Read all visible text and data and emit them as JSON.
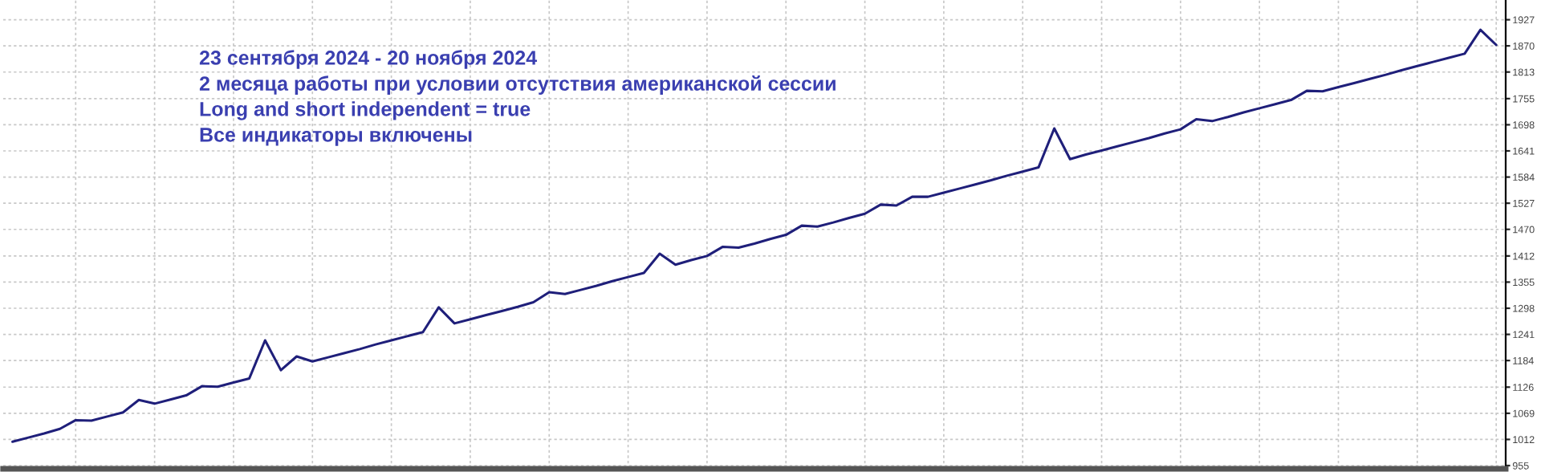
{
  "chart_data": {
    "type": "line",
    "annotations": [
      "23 сентября 2024 - 20 ноября 2024",
      "2 месяца работы при условии отсутствия американской сессии",
      "Long and short independent = true",
      "Все индикаторы включены"
    ],
    "categories": [
      null,
      null,
      null,
      null,
      null,
      null,
      null,
      null,
      null,
      null,
      null,
      null,
      null,
      null,
      null,
      null,
      null,
      null,
      null,
      null,
      null,
      null,
      null,
      null,
      null,
      null,
      null,
      null,
      null,
      null,
      null,
      null,
      null,
      null,
      null,
      null,
      null,
      null,
      null,
      null,
      null,
      null,
      null,
      null,
      null,
      null,
      null,
      null,
      null,
      null,
      null,
      null,
      null,
      null,
      null,
      null,
      null,
      null,
      null,
      null,
      null,
      null,
      null,
      null,
      null,
      null,
      null,
      null,
      null,
      null,
      null,
      null,
      null,
      null,
      null,
      null,
      null,
      null,
      null,
      null,
      null,
      null,
      null,
      null,
      null,
      null,
      null,
      null,
      null,
      null,
      null,
      null,
      null,
      null,
      null
    ],
    "series": [
      {
        "color": "#1f1f7a",
        "values": [
          1007,
          1016,
          1025,
          1035,
          1054,
          1053,
          1062,
          1071,
          1098,
          1090,
          1099,
          1108,
          1128,
          1127,
          1136,
          1145,
          1228,
          1163,
          1193,
          1182,
          1191,
          1200,
          1209,
          1219,
          1228,
          1237,
          1246,
          1300,
          1265,
          1274,
          1283,
          1292,
          1301,
          1311,
          1333,
          1329,
          1338,
          1347,
          1357,
          1366,
          1375,
          1417,
          1393,
          1403,
          1412,
          1432,
          1430,
          1439,
          1449,
          1458,
          1478,
          1476,
          1485,
          1495,
          1504,
          1524,
          1522,
          1541,
          1541,
          1550,
          1559,
          1568,
          1577,
          1587,
          1596,
          1605,
          1690,
          1623,
          1633,
          1642,
          1651,
          1660,
          1669,
          1679,
          1688,
          1710,
          1706,
          1715,
          1725,
          1734,
          1743,
          1752,
          1772,
          1771,
          1780,
          1789,
          1798,
          1807,
          1817,
          1826,
          1835,
          1844,
          1853,
          1905,
          1872
        ]
      }
    ],
    "ylim": [
      948,
      1970
    ],
    "yticks": [
      955,
      1012,
      1069,
      1126,
      1184,
      1241,
      1298,
      1355,
      1412,
      1470,
      1527,
      1584,
      1641,
      1698,
      1755,
      1813,
      1870,
      1927
    ],
    "grid": true,
    "tick_labels": "y",
    "marker": "none",
    "line_style": "solid",
    "legend": false
  }
}
